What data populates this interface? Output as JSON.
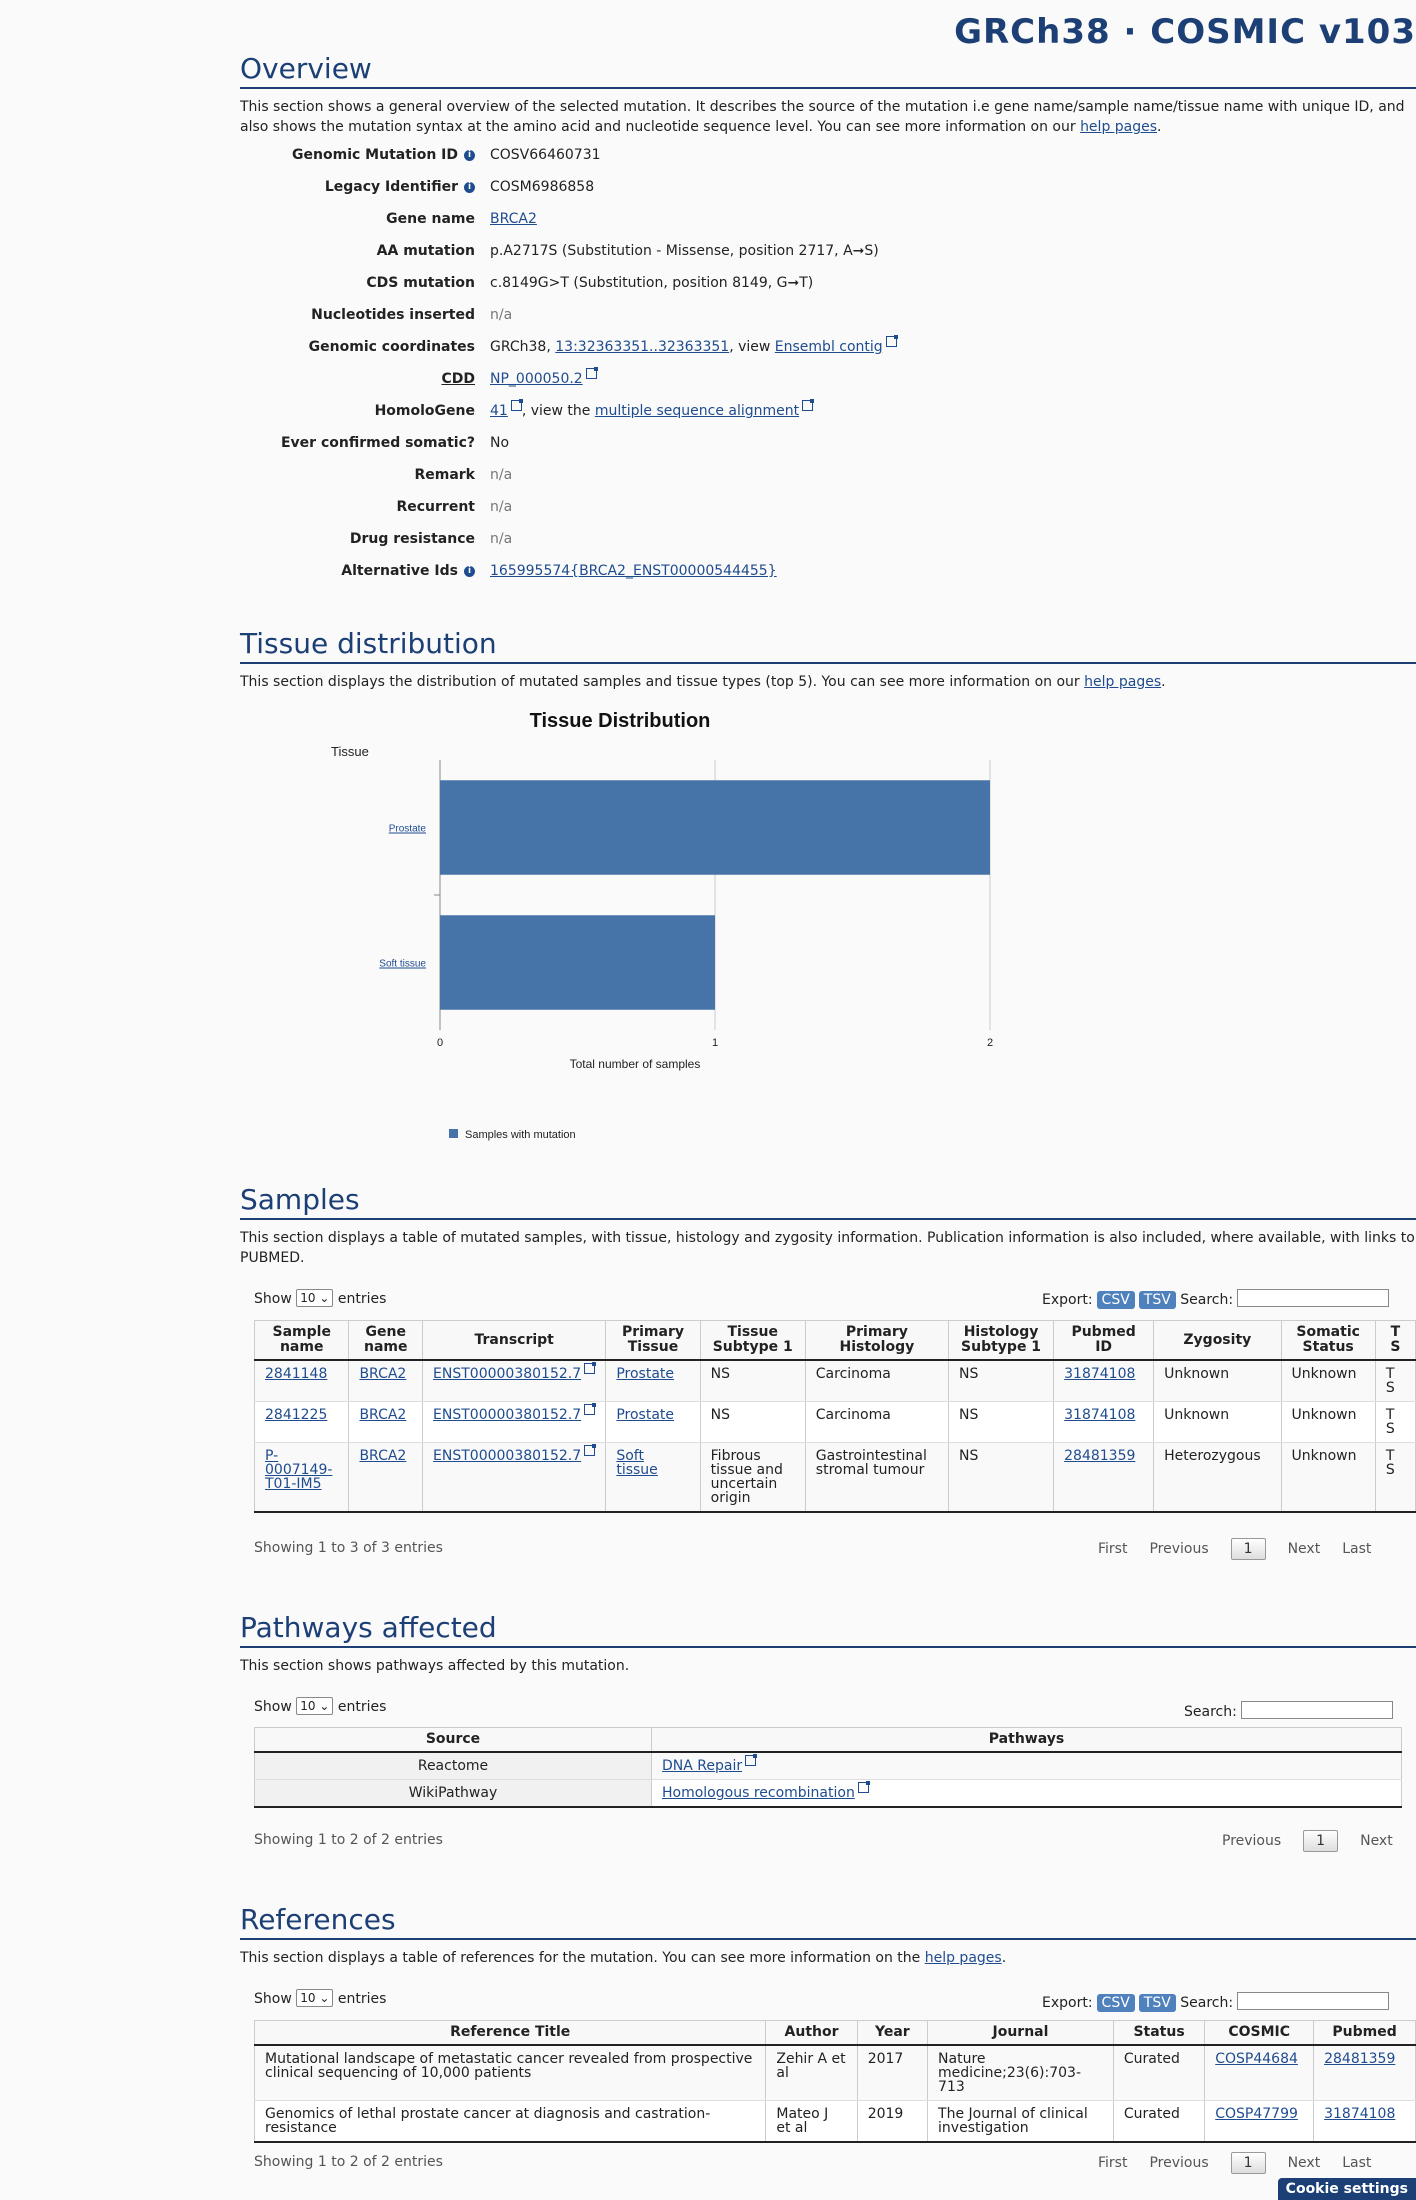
{
  "header": {
    "title": "GRCh38 · COSMIC v103"
  },
  "overview": {
    "title": "Overview",
    "description": "This section shows a general overview of the selected mutation. It describes the source of the mutation i.e gene name/sample name/tissue name with unique ID, and also shows the mutation syntax at the amino acid and nucleotide sequence level. You can see more information on our ",
    "help_link": "help pages",
    "rows": {
      "genomic_mutation_id": {
        "label": "Genomic Mutation ID",
        "value": "COSV66460731"
      },
      "legacy_identifier": {
        "label": "Legacy Identifier",
        "value": "COSM6986858"
      },
      "gene_name": {
        "label": "Gene name",
        "value": "BRCA2"
      },
      "aa_mutation": {
        "label": "AA mutation",
        "value": "p.A2717S (Substitution - Missense, position 2717, A➞S)"
      },
      "cds_mutation": {
        "label": "CDS mutation",
        "value": "c.8149G>T (Substitution, position 8149, G➞T)"
      },
      "nucleotides_inserted": {
        "label": "Nucleotides inserted",
        "value": "n/a"
      },
      "genomic_coordinates": {
        "label": "Genomic coordinates",
        "prefix": "GRCh38, ",
        "coord_link": "13:32363351..32363351",
        "mid": ", view ",
        "ensembl_link": "Ensembl contig"
      },
      "cdd": {
        "label": "CDD",
        "value": "NP_000050.2"
      },
      "homologene": {
        "label": "HomoloGene",
        "link": "41",
        "mid": ", view the ",
        "msa_link": "multiple sequence alignment"
      },
      "ever_confirmed": {
        "label": "Ever confirmed somatic?",
        "value": "No"
      },
      "remark": {
        "label": "Remark",
        "value": "n/a"
      },
      "recurrent": {
        "label": "Recurrent",
        "value": "n/a"
      },
      "drug_resistance": {
        "label": "Drug resistance",
        "value": "n/a"
      },
      "alternative_ids": {
        "label": "Alternative Ids",
        "value": "165995574{BRCA2_ENST00000544455}"
      }
    }
  },
  "tissue": {
    "title": "Tissue distribution",
    "description": "This section displays the distribution of mutated samples and tissue types (top 5). You can see more information on our ",
    "help_link": "help pages"
  },
  "chart_data": {
    "type": "bar",
    "orientation": "horizontal",
    "title": "Tissue Distribution",
    "ylabel": "Tissue",
    "xlabel": "Total number of samples",
    "categories": [
      "Prostate",
      "Soft tissue"
    ],
    "series": [
      {
        "name": "Samples with mutation",
        "values": [
          2,
          1
        ],
        "color": "#4673a8"
      }
    ],
    "xlim": [
      0,
      2
    ],
    "xticks": [
      "0",
      "1",
      "2"
    ],
    "grid": true,
    "legend": "bottom-left"
  },
  "samples": {
    "title": "Samples",
    "description": "This section displays a table of mutated samples, with tissue, histology and zygosity information. Publication information is also included, where available, with links to PUBMED.",
    "show": "Show",
    "show_value": "10",
    "entries": "entries",
    "export": "Export:",
    "csv": "CSV",
    "tsv": "TSV",
    "search": "Search:",
    "columns": [
      "Sample name",
      "Gene name",
      "Transcript",
      "Primary Tissue",
      "Tissue Subtype 1",
      "Primary Histology",
      "Histology Subtype 1",
      "Pubmed ID",
      "Zygosity",
      "Somatic Status",
      "T S"
    ],
    "rows": [
      [
        "2841148",
        "BRCA2",
        "ENST00000380152.7",
        "Prostate",
        "NS",
        "Carcinoma",
        "NS",
        "31874108",
        "Unknown",
        "Unknown",
        "T S"
      ],
      [
        "2841225",
        "BRCA2",
        "ENST00000380152.7",
        "Prostate",
        "NS",
        "Carcinoma",
        "NS",
        "31874108",
        "Unknown",
        "Unknown",
        "T S"
      ],
      [
        "P-0007149-T01-IM5",
        "BRCA2",
        "ENST00000380152.7",
        "Soft tissue",
        "Fibrous tissue and uncertain origin",
        "Gastrointestinal stromal tumour",
        "NS",
        "28481359",
        "Heterozygous",
        "Unknown",
        "T S"
      ]
    ],
    "info": "Showing 1 to 3 of 3 entries",
    "pager": {
      "first": "First",
      "previous": "Previous",
      "page": "1",
      "next": "Next",
      "last": "Last"
    }
  },
  "pathways": {
    "title": "Pathways affected",
    "description": "This section shows pathways affected by this mutation.",
    "show": "Show",
    "show_value": "10",
    "entries": "entries",
    "search": "Search:",
    "columns": [
      "Source",
      "Pathways"
    ],
    "rows": [
      [
        "Reactome",
        "DNA Repair"
      ],
      [
        "WikiPathway",
        "Homologous recombination"
      ]
    ],
    "info": "Showing 1 to 2 of 2 entries",
    "pager": {
      "previous": "Previous",
      "page": "1",
      "next": "Next"
    }
  },
  "references": {
    "title": "References",
    "description": "This section displays a table of references for the mutation. You can see more information on the ",
    "help_link": "help pages",
    "show": "Show",
    "show_value": "10",
    "entries": "entries",
    "export": "Export:",
    "csv": "CSV",
    "tsv": "TSV",
    "search": "Search:",
    "columns": [
      "Reference Title",
      "Author",
      "Year",
      "Journal",
      "Status",
      "COSMIC",
      "Pubmed"
    ],
    "rows": [
      [
        "Mutational landscape of metastatic cancer revealed from prospective clinical sequencing of 10,000 patients",
        "Zehir A et al",
        "2017",
        "Nature medicine;23(6):703-713",
        "Curated",
        "COSP44684",
        "28481359"
      ],
      [
        "Genomics of lethal prostate cancer at diagnosis and castration-resistance",
        "Mateo J et al",
        "2019",
        "The Journal of clinical investigation",
        "Curated",
        "COSP47799",
        "31874108"
      ]
    ],
    "info": "Showing 1 to 2 of 2 entries",
    "pager": {
      "first": "First",
      "previous": "Previous",
      "page": "1",
      "next": "Next",
      "last": "Last"
    }
  },
  "cookie": {
    "label": "Cookie settings"
  }
}
